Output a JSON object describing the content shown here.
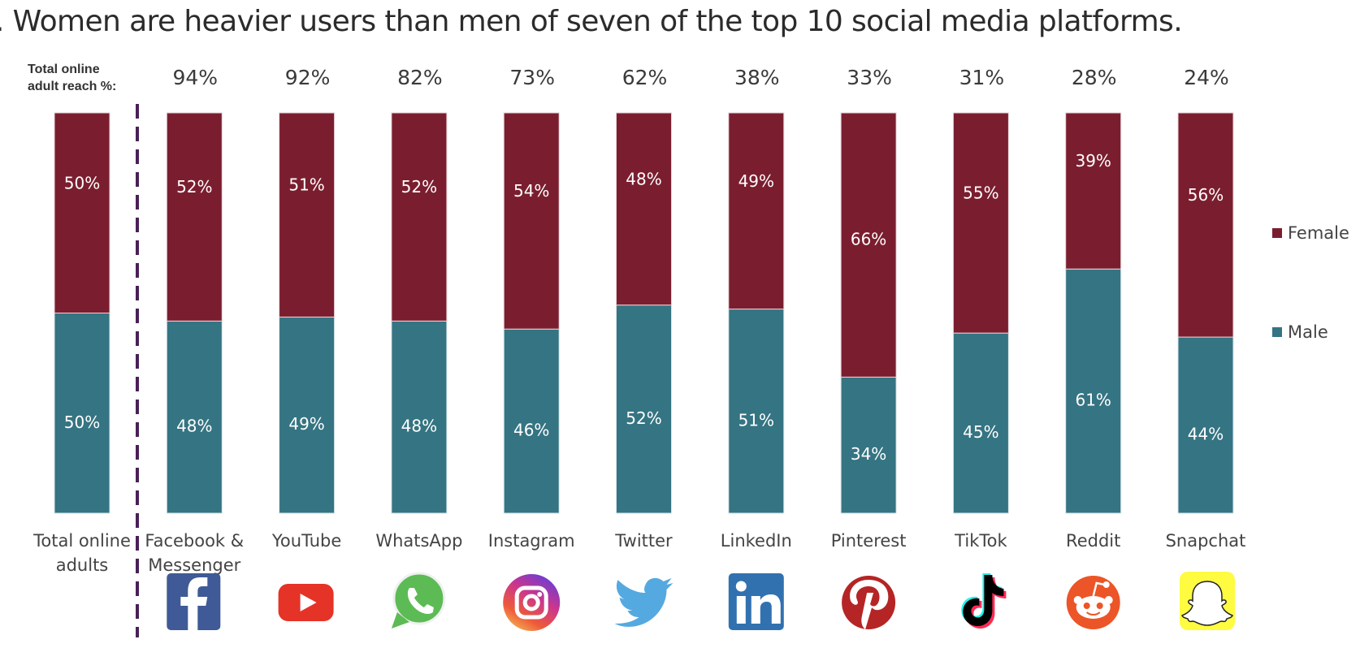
{
  "title": ". Women are heavier users than men of seven of the top 10 social media platforms.",
  "reach_caption_line1": "Total online",
  "reach_caption_line2": "adult reach %:",
  "colors": {
    "female": "#7a1e2f",
    "male": "#357482",
    "divider": "#4a2157"
  },
  "chart_data": {
    "type": "bar",
    "stacked": true,
    "normalized_to_100": true,
    "title": "Women are heavier users than men of seven of the top 10 social media platforms.",
    "xlabel": "",
    "ylabel": "",
    "ylim": [
      0,
      100
    ],
    "grid": false,
    "legend_position": "right",
    "categories": [
      [
        "Total online",
        "adults"
      ],
      [
        "Facebook &",
        "Messenger"
      ],
      [
        "YouTube"
      ],
      [
        "WhatsApp"
      ],
      [
        "Instagram"
      ],
      [
        "Twitter"
      ],
      [
        "LinkedIn"
      ],
      [
        "Pinterest"
      ],
      [
        "TikTok"
      ],
      [
        "Reddit"
      ],
      [
        "Snapchat"
      ]
    ],
    "reach_label": "Total online adult reach %:",
    "reach": [
      "",
      "94%",
      "92%",
      "82%",
      "73%",
      "62%",
      "38%",
      "33%",
      "31%",
      "28%",
      "24%"
    ],
    "series": [
      {
        "name": "Female",
        "values": [
          50,
          52,
          51,
          52,
          54,
          48,
          49,
          66,
          55,
          39,
          56
        ]
      },
      {
        "name": "Male",
        "values": [
          50,
          48,
          49,
          48,
          46,
          52,
          51,
          34,
          45,
          61,
          44
        ]
      }
    ],
    "legend": [
      "Female",
      "Male"
    ],
    "icons": [
      "",
      "facebook-icon",
      "youtube-icon",
      "whatsapp-icon",
      "instagram-icon",
      "twitter-icon",
      "linkedin-icon",
      "pinterest-icon",
      "tiktok-icon",
      "reddit-icon",
      "snapchat-icon"
    ]
  }
}
